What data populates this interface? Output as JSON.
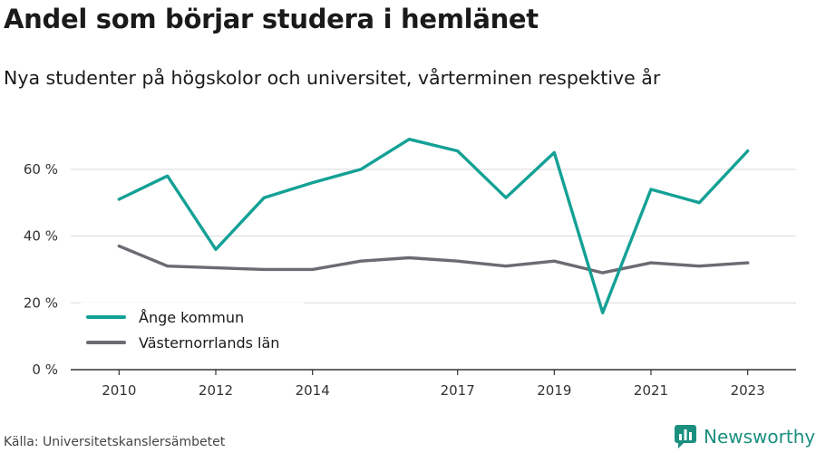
{
  "header": {
    "title": "Andel som börjar studera i hemlänet",
    "subtitle": "Nya studenter på högskolor och universitet, vårterminen respektive år"
  },
  "footer": {
    "source": "Källa: Universitetskanslersämbetet",
    "brand": "Newsworthy"
  },
  "colors": {
    "series_1": "#14a195",
    "series_2": "#6b6b73",
    "grid": "#d9d9d9",
    "axis": "#333333",
    "brand": "#1c8f7f"
  },
  "chart_data": {
    "type": "line",
    "title": "Andel som börjar studera i hemlänet",
    "subtitle": "Nya studenter på högskolor och universitet, vårterminen respektive år",
    "x": [
      2010,
      2011,
      2012,
      2013,
      2014,
      2015,
      2016,
      2017,
      2018,
      2019,
      2020,
      2021,
      2022,
      2023
    ],
    "x_tick_values": [
      2010,
      2012,
      2014,
      2017,
      2019,
      2021,
      2023
    ],
    "x_tick_labels": [
      "2010",
      "2012",
      "2014",
      "2017",
      "2019",
      "2021",
      "2023"
    ],
    "xlim": [
      2009.0,
      2024.0
    ],
    "ylim": [
      0,
      70
    ],
    "y_tick_values": [
      0,
      20,
      40,
      60
    ],
    "y_tick_labels": [
      "0 %",
      "20 %",
      "40 %",
      "60 %"
    ],
    "grid": true,
    "legend_position": "bottom-left",
    "series": [
      {
        "name": "Ånge kommun",
        "values": [
          51,
          58,
          36,
          51.5,
          56,
          60,
          69,
          65.5,
          51.5,
          65,
          17,
          54,
          50,
          65.5
        ]
      },
      {
        "name": "Västernorrlands län",
        "values": [
          37,
          31,
          30.5,
          30,
          30,
          32.5,
          33.5,
          32.5,
          31,
          32.5,
          29,
          32,
          31,
          32
        ]
      }
    ]
  }
}
